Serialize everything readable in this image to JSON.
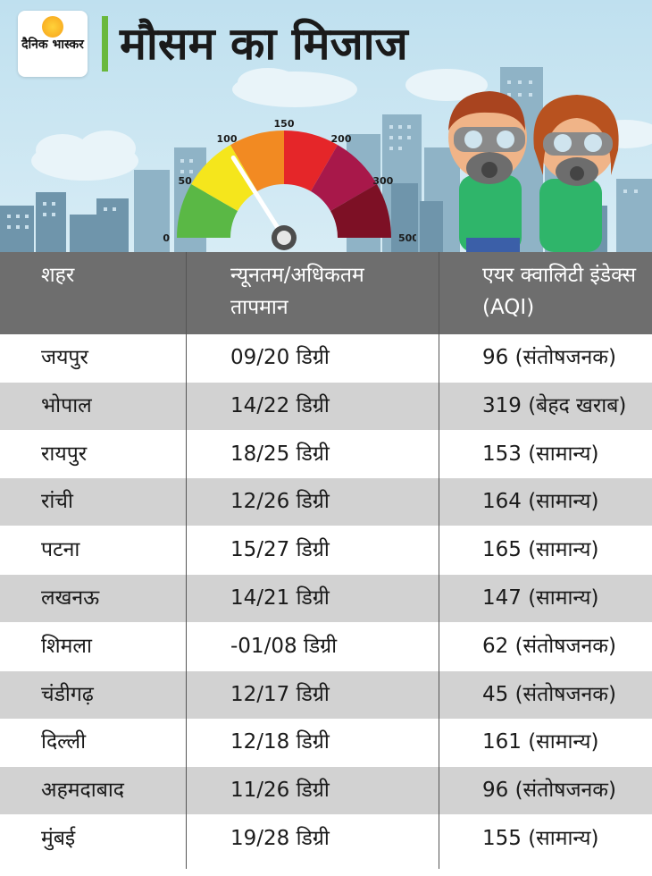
{
  "header": {
    "logo_text": "दैनिक भास्कर",
    "title": "मौसम का मिजाज"
  },
  "gauge": {
    "ticks": [
      "0",
      "50",
      "100",
      "150",
      "200",
      "300",
      "500"
    ],
    "needle_value": 96,
    "colors": [
      "#5ab845",
      "#f5e61c",
      "#f28a22",
      "#e52629",
      "#a8184a",
      "#7d1025"
    ]
  },
  "table": {
    "headers": [
      "शहर",
      "न्यूनतम/अधिकतम तापमान",
      "एयर क्वालिटी इंडेक्स (AQI)"
    ],
    "rows": [
      {
        "city": "जयपुर",
        "temp": "09/20 डिग्री",
        "aqi": "96 (संतोषजनक)"
      },
      {
        "city": "भोपाल",
        "temp": "14/22 डिग्री",
        "aqi": "319 (बेहद खराब)"
      },
      {
        "city": "रायपुर",
        "temp": "18/25  डिग्री",
        "aqi": "153 (सामान्य)"
      },
      {
        "city": "रांची",
        "temp": "12/26 डिग्री",
        "aqi": "164 (सामान्य)"
      },
      {
        "city": "पटना",
        "temp": "15/27 डिग्री",
        "aqi": "165 (सामान्य)"
      },
      {
        "city": "लखनऊ",
        "temp": "14/21 डिग्री",
        "aqi": "147 (सामान्य)"
      },
      {
        "city": "शिमला",
        "temp": "-01/08 डिग्री",
        "aqi": "62 (संतोषजनक)"
      },
      {
        "city": "चंडीगढ़",
        "temp": "12/17 डिग्री",
        "aqi": "45 (संतोषजनक)"
      },
      {
        "city": "दिल्ली",
        "temp": "12/18 डिग्री",
        "aqi": "161 (सामान्य)"
      },
      {
        "city": "अहमदाबाद",
        "temp": "11/26 डिग्री",
        "aqi": "96 (संतोषजनक)"
      },
      {
        "city": "मुंबई",
        "temp": "19/28 डिग्री",
        "aqi": "155 (सामान्य)"
      }
    ]
  }
}
